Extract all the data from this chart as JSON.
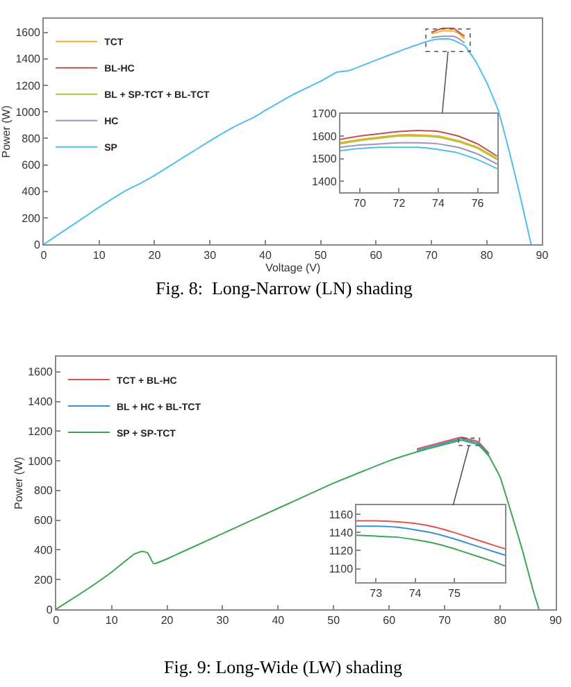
{
  "chart_data": [
    {
      "type": "line",
      "xlabel": "Voltage (V)",
      "ylabel": "Power (W)",
      "annotations": [
        "Fig. 8:  Long-Narrow (LN) shading"
      ],
      "legend": "top left",
      "x": [
        0,
        5,
        10,
        15,
        17,
        20,
        25,
        30,
        35,
        38,
        40,
        45,
        50,
        53,
        55,
        57,
        60,
        65,
        70,
        72,
        73,
        74,
        75,
        76,
        78,
        80,
        82,
        84,
        86,
        88
      ],
      "xlim": [
        0,
        90
      ],
      "xticks": [
        0,
        10,
        20,
        30,
        40,
        50,
        60,
        70,
        80,
        90
      ],
      "ylim": [
        0,
        1700
      ],
      "yticks": [
        0,
        200,
        400,
        600,
        800,
        1000,
        1200,
        1400,
        1600
      ],
      "series": [
        {
          "name": "TCT",
          "color": "#edb120",
          "values": [
            null,
            null,
            null,
            null,
            null,
            null,
            null,
            null,
            null,
            null,
            null,
            null,
            null,
            null,
            null,
            null,
            null,
            null,
            1590,
            1610,
            1610,
            1610,
            1590,
            1550,
            null,
            null,
            null,
            null,
            null,
            null
          ]
        },
        {
          "name": "BL-HC",
          "color": "#c0504d",
          "values": [
            null,
            null,
            null,
            null,
            null,
            null,
            null,
            null,
            null,
            null,
            null,
            null,
            null,
            null,
            null,
            null,
            null,
            null,
            1600,
            1630,
            1630,
            1630,
            1600,
            1570,
            null,
            null,
            null,
            null,
            null,
            null
          ]
        },
        {
          "name": "BL + SP-TCT + BL-TCT",
          "color": "#a8c545",
          "values": [
            null,
            null,
            null,
            null,
            null,
            null,
            null,
            null,
            null,
            null,
            null,
            null,
            null,
            null,
            null,
            null,
            null,
            null,
            null,
            null,
            null,
            null,
            null,
            null,
            null,
            null,
            null,
            null,
            null,
            null
          ]
        },
        {
          "name": "HC",
          "color": "#a093b5",
          "values": [
            null,
            null,
            null,
            null,
            null,
            null,
            null,
            null,
            null,
            null,
            null,
            null,
            null,
            null,
            null,
            null,
            null,
            null,
            1560,
            1570,
            1570,
            1570,
            1550,
            1520,
            null,
            null,
            null,
            null,
            null,
            null
          ]
        },
        {
          "name": "SP",
          "color": "#4dbeee",
          "values": [
            0,
            140,
            280,
            410,
            450,
            520,
            650,
            780,
            900,
            960,
            1010,
            1130,
            1230,
            1300,
            1310,
            1340,
            1390,
            1470,
            1540,
            1550,
            1550,
            1540,
            1520,
            1500,
            1380,
            1220,
            1020,
            710,
            370,
            0
          ]
        }
      ]
    },
    {
      "type": "line",
      "x": [
        69,
        70,
        71,
        72,
        73,
        74,
        75,
        76,
        77
      ],
      "xlim": [
        69,
        77
      ],
      "xticks": [
        70,
        72,
        74,
        76
      ],
      "ylim": [
        1350,
        1700
      ],
      "yticks": [
        1400,
        1500,
        1600,
        1700
      ],
      "series": [
        {
          "color": "#edb120",
          "values": [
            1570,
            1585,
            1595,
            1605,
            1605,
            1600,
            1580,
            1550,
            1500
          ]
        },
        {
          "color": "#c0504d",
          "values": [
            1585,
            1600,
            1610,
            1620,
            1625,
            1620,
            1600,
            1565,
            1510
          ]
        },
        {
          "color": "#a8c545",
          "values": [
            1565,
            1580,
            1590,
            1600,
            1600,
            1595,
            1575,
            1545,
            1495
          ]
        },
        {
          "color": "#a093b5",
          "values": [
            1550,
            1560,
            1565,
            1570,
            1570,
            1565,
            1550,
            1520,
            1475
          ]
        },
        {
          "color": "#4dbeee",
          "values": [
            1535,
            1545,
            1550,
            1550,
            1550,
            1540,
            1525,
            1495,
            1455
          ]
        }
      ]
    },
    {
      "type": "line",
      "ylabel": "Power (W)",
      "annotations": [
        "Fig. 9: Long-Wide (LW) shading"
      ],
      "legend": "top left",
      "x": [
        0,
        5,
        10,
        14,
        15.5,
        16.5,
        17.5,
        18,
        20,
        30,
        40,
        50,
        60,
        65,
        70,
        72,
        73,
        74,
        75,
        76,
        78,
        80,
        82,
        84,
        86,
        87
      ],
      "xlim": [
        0,
        90
      ],
      "xticks": [
        0,
        10,
        20,
        30,
        40,
        50,
        60,
        70,
        80,
        90
      ],
      "ylim": [
        0,
        1700
      ],
      "yticks": [
        0,
        200,
        400,
        600,
        800,
        1000,
        1200,
        1400,
        1600
      ],
      "series": [
        {
          "name": "TCT + BL-HC",
          "color": "#d9534f",
          "values": [
            null,
            null,
            null,
            null,
            null,
            null,
            null,
            null,
            null,
            null,
            null,
            null,
            null,
            1080,
            1130,
            1150,
            1160,
            1150,
            1140,
            1130,
            1050,
            null,
            null,
            null,
            null,
            null
          ]
        },
        {
          "name": "BL + HC + BL-TCT",
          "color": "#3a8fd0",
          "values": [
            null,
            null,
            null,
            null,
            null,
            null,
            null,
            null,
            null,
            null,
            null,
            null,
            null,
            1070,
            1120,
            1140,
            1150,
            1140,
            1130,
            1120,
            1040,
            null,
            null,
            null,
            null,
            null
          ]
        },
        {
          "name": "SP + SP-TCT",
          "color": "#3aa655",
          "values": [
            0,
            120,
            250,
            370,
            390,
            380,
            310,
            310,
            340,
            510,
            680,
            850,
            1000,
            1060,
            1110,
            1130,
            1140,
            1130,
            1120,
            1110,
            1030,
            890,
            650,
            400,
            120,
            0
          ]
        }
      ]
    },
    {
      "type": "line",
      "x": [
        72.5,
        73,
        73.5,
        74,
        74.5,
        75,
        75.5,
        76,
        76.3
      ],
      "xlim": [
        72.5,
        76.3
      ],
      "xticks": [
        73,
        74,
        75
      ],
      "ylim": [
        1085,
        1170
      ],
      "yticks": [
        1100,
        1120,
        1140,
        1160
      ],
      "series": [
        {
          "color": "#d9534f",
          "values": [
            1153,
            1153,
            1152,
            1150,
            1146,
            1140,
            1133,
            1126,
            1122
          ]
        },
        {
          "color": "#3a8fd0",
          "values": [
            1147,
            1147,
            1146,
            1143,
            1139,
            1133,
            1126,
            1119,
            1115
          ]
        },
        {
          "color": "#3aa655",
          "values": [
            1137,
            1136,
            1135,
            1132,
            1128,
            1122,
            1115,
            1108,
            1103
          ]
        }
      ]
    }
  ]
}
